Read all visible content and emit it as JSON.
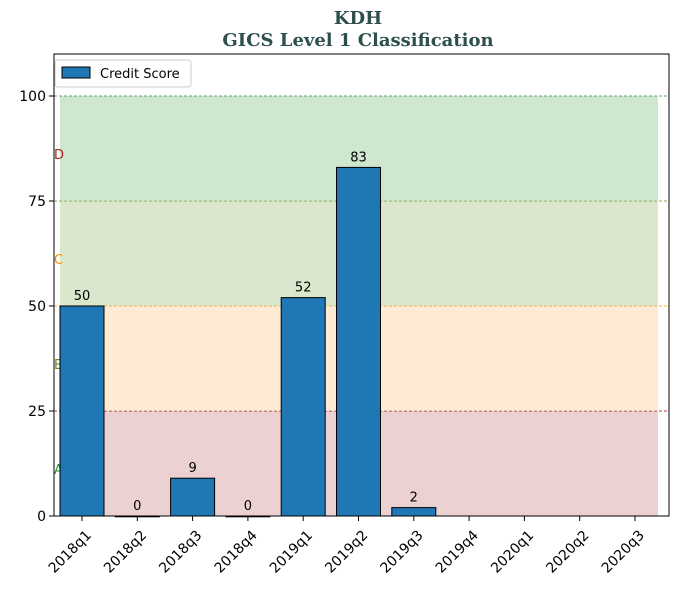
{
  "chart_data": {
    "type": "bar",
    "title": "KDH",
    "subtitle": "GICS Level 1 Classification",
    "categories": [
      "2018q1",
      "2018q2",
      "2018q3",
      "2018q4",
      "2019q1",
      "2019q2",
      "2019q3",
      "2019q4",
      "2020q1",
      "2020q2",
      "2020q3"
    ],
    "series": [
      {
        "name": "Credit Score",
        "values": [
          50,
          0,
          9,
          0,
          52,
          83,
          2,
          null,
          null,
          null,
          null
        ],
        "color": "#1f77b4"
      }
    ],
    "data_labels": [
      "50",
      "0",
      "9",
      "0",
      "52",
      "83",
      "2",
      "",
      "",
      "",
      ""
    ],
    "ylim": [
      0,
      110
    ],
    "yticks": [
      0,
      25,
      50,
      75,
      100
    ],
    "ytick_labels": [
      "0",
      "25",
      "50",
      "75",
      "100"
    ],
    "xlabel": "",
    "ylabel": "",
    "grid": false,
    "legend_position": "top-left",
    "zones": [
      {
        "label": "A",
        "from": 0,
        "to": 25,
        "fill": "#d9a3a8",
        "line": "#8b0000",
        "label_color": "#2ca02c"
      },
      {
        "label": "B",
        "from": 25,
        "to": 50,
        "fill": "#ffd7a8",
        "line": "#ff8c00",
        "label_color": "#6b8e23"
      },
      {
        "label": "C",
        "from": 50,
        "to": 75,
        "fill": "#b8cf9a",
        "line": "#6b8e23",
        "label_color": "#ff8c00"
      },
      {
        "label": "D",
        "from": 75,
        "to": 100,
        "fill": "#9fcfa0",
        "line": "#2e8b2e",
        "label_color": "#b22222"
      }
    ],
    "title_color": "#2f4f4f"
  }
}
